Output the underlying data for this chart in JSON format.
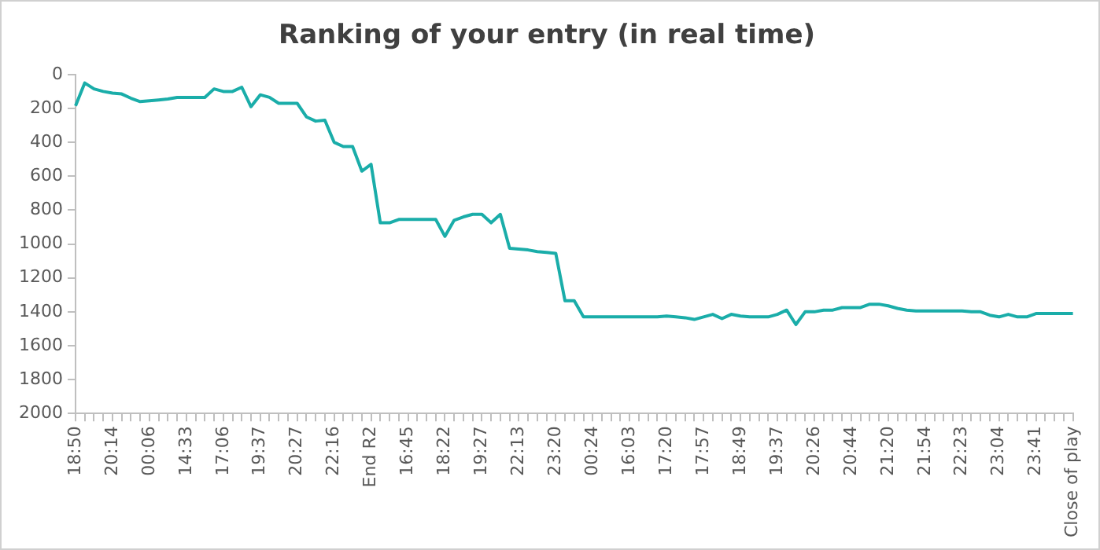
{
  "chart_data": {
    "type": "line",
    "title": "Ranking of your entry (in real time)",
    "categories": [
      "18:50",
      null,
      null,
      null,
      "20:14",
      null,
      null,
      null,
      "00:06",
      null,
      null,
      null,
      "14:33",
      null,
      null,
      null,
      "17:06",
      null,
      null,
      null,
      "19:37",
      null,
      null,
      null,
      "20:27",
      null,
      null,
      null,
      "22:16",
      null,
      null,
      null,
      "End R2",
      null,
      null,
      null,
      "16:45",
      null,
      null,
      null,
      "18:22",
      null,
      null,
      null,
      "19:27",
      null,
      null,
      null,
      "22:13",
      null,
      null,
      null,
      "23:20",
      null,
      null,
      null,
      "00:24",
      null,
      null,
      null,
      "16:03",
      null,
      null,
      null,
      "17:20",
      null,
      null,
      null,
      "17:57",
      null,
      null,
      null,
      "18:49",
      null,
      null,
      null,
      "19:37",
      null,
      null,
      null,
      "20:26",
      null,
      null,
      null,
      "20:44",
      null,
      null,
      null,
      "21:20",
      null,
      null,
      null,
      "21:54",
      null,
      null,
      null,
      "22:23",
      null,
      null,
      null,
      "23:04",
      null,
      null,
      null,
      "23:41",
      null,
      null,
      null,
      "Close of play"
    ],
    "series": [
      {
        "color": "#1aada9",
        "values": [
          185,
          50,
          85,
          100,
          110,
          115,
          140,
          160,
          155,
          150,
          145,
          135,
          135,
          135,
          135,
          85,
          100,
          100,
          75,
          190,
          120,
          135,
          170,
          170,
          170,
          250,
          275,
          270,
          400,
          425,
          425,
          570,
          530,
          875,
          875,
          855,
          855,
          855,
          855,
          855,
          955,
          860,
          840,
          825,
          825,
          875,
          825,
          1025,
          1030,
          1035,
          1045,
          1050,
          1055,
          1335,
          1335,
          1430,
          1430,
          1430,
          1430,
          1430,
          1430,
          1430,
          1430,
          1430,
          1425,
          1430,
          1435,
          1445,
          1430,
          1415,
          1440,
          1415,
          1425,
          1430,
          1430,
          1430,
          1415,
          1390,
          1475,
          1400,
          1400,
          1390,
          1390,
          1375,
          1375,
          1375,
          1355,
          1355,
          1365,
          1380,
          1390,
          1395,
          1395,
          1395,
          1395,
          1395,
          1395,
          1400,
          1400,
          1420,
          1430,
          1415,
          1430,
          1430,
          1410,
          1410,
          1410,
          1410,
          1410
        ]
      }
    ],
    "ylim": [
      2000,
      0
    ],
    "yticks": [
      0,
      200,
      400,
      600,
      800,
      1000,
      1200,
      1400,
      1600,
      1800,
      2000
    ],
    "grid": false,
    "legend": false,
    "marker": "none",
    "line_style": "solid"
  }
}
